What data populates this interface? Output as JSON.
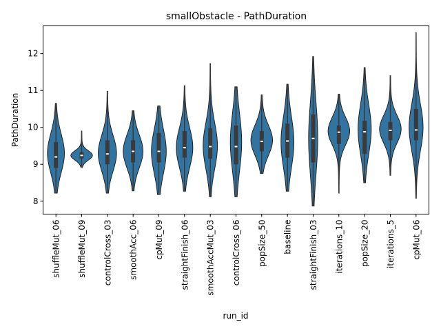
{
  "chart_data": {
    "type": "violin",
    "title": "smallObstacle - PathDuration",
    "xlabel": "run_id",
    "ylabel": "PathDuration",
    "ylim": [
      7.65,
      12.75
    ],
    "yticks": [
      8,
      9,
      10,
      11,
      12
    ],
    "grid": false,
    "colors": {
      "violin_fill": "#3274a1",
      "violin_edge": "#222222",
      "box": "#3a3a3a",
      "median": "#ffffff"
    },
    "categories": [
      {
        "name": "shuffleMut_06",
        "min": 8.22,
        "q1": 8.9,
        "median": 9.2,
        "q3": 9.6,
        "max": 10.65,
        "density_peak": 9.3
      },
      {
        "name": "shuffleMut_09",
        "min": 8.92,
        "q1": 9.16,
        "median": 9.24,
        "q3": 9.33,
        "max": 9.9,
        "density_peak": 9.24
      },
      {
        "name": "controlCross_03",
        "min": 8.22,
        "q1": 9.0,
        "median": 9.28,
        "q3": 9.65,
        "max": 10.98,
        "density_peak": 9.3
      },
      {
        "name": "smoothAcc_06",
        "min": 8.28,
        "q1": 9.05,
        "median": 9.35,
        "q3": 9.65,
        "max": 10.45,
        "density_peak": 9.35
      },
      {
        "name": "cpMut_09",
        "min": 8.18,
        "q1": 9.05,
        "median": 9.35,
        "q3": 9.85,
        "max": 10.58,
        "density_peak": 9.35
      },
      {
        "name": "straightFinish_06",
        "min": 8.27,
        "q1": 9.18,
        "median": 9.45,
        "q3": 9.9,
        "max": 11.13,
        "density_peak": 9.45
      },
      {
        "name": "smoothAccMut_03",
        "min": 8.12,
        "q1": 9.15,
        "median": 9.48,
        "q3": 9.98,
        "max": 11.73,
        "density_peak": 9.5
      },
      {
        "name": "controlCross_06",
        "min": 8.12,
        "q1": 9.0,
        "median": 9.48,
        "q3": 10.05,
        "max": 11.1,
        "density_peak": 9.6
      },
      {
        "name": "popSize_50",
        "min": 8.75,
        "q1": 9.35,
        "median": 9.62,
        "q3": 9.9,
        "max": 10.88,
        "density_peak": 9.65
      },
      {
        "name": "baseline",
        "min": 8.27,
        "q1": 9.18,
        "median": 9.63,
        "q3": 10.1,
        "max": 11.17,
        "density_peak": 9.6
      },
      {
        "name": "straightFinish_03",
        "min": 7.87,
        "q1": 9.05,
        "median": 9.7,
        "q3": 10.35,
        "max": 11.92,
        "density_peak": 9.7
      },
      {
        "name": "iterations_10",
        "min": 8.22,
        "q1": 9.55,
        "median": 9.87,
        "q3": 10.05,
        "max": 10.9,
        "density_peak": 9.9
      },
      {
        "name": "popSize_20",
        "min": 8.5,
        "q1": 9.28,
        "median": 9.88,
        "q3": 10.18,
        "max": 11.62,
        "density_peak": 9.95
      },
      {
        "name": "iterations_5",
        "min": 8.7,
        "q1": 9.65,
        "median": 9.92,
        "q3": 10.15,
        "max": 11.4,
        "density_peak": 9.95
      },
      {
        "name": "cpMut_06",
        "min": 8.08,
        "q1": 9.65,
        "median": 9.93,
        "q3": 10.5,
        "max": 12.57,
        "density_peak": 10.0
      }
    ]
  }
}
